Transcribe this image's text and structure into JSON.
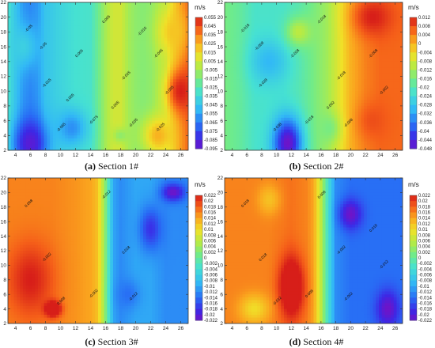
{
  "chart_data": [
    {
      "type": "heatmap",
      "caption_letter": "(a)",
      "caption_text": "Section 1#",
      "unit": "m/s",
      "x_ticks": [
        4,
        6,
        8,
        10,
        12,
        14,
        16,
        18,
        20,
        22,
        24,
        26
      ],
      "y_ticks": [
        2,
        4,
        6,
        8,
        10,
        12,
        14,
        16,
        18,
        20,
        22
      ],
      "xlim": [
        3,
        27
      ],
      "ylim": [
        2,
        22
      ],
      "colorbar_ticks": [
        0.055,
        0.045,
        0.035,
        0.025,
        0.015,
        0.005,
        -0.005,
        -0.015,
        -0.025,
        -0.035,
        -0.045,
        -0.055,
        -0.065,
        -0.075,
        -0.085,
        -0.095
      ],
      "value_range": [
        -0.095,
        0.055
      ],
      "contour_labels": [
        "-0.05",
        "-0.015",
        "0.005",
        "-0.025",
        "-0.065",
        "-0.075",
        "-0.035",
        "-0.045",
        "-0.055",
        "0.005",
        "0.005",
        "-0.05",
        "-0.015",
        "0.005",
        "-0.025"
      ],
      "base_field": [
        {
          "x": 3,
          "v": -0.03
        },
        {
          "x": 4,
          "v": -0.045
        },
        {
          "x": 5,
          "v": -0.058
        },
        {
          "x": 6,
          "v": -0.062
        },
        {
          "x": 7,
          "v": -0.058
        },
        {
          "x": 8,
          "v": -0.045
        },
        {
          "x": 10,
          "v": -0.038
        },
        {
          "x": 12,
          "v": -0.032
        },
        {
          "x": 14,
          "v": -0.03
        },
        {
          "x": 15,
          "v": -0.018
        },
        {
          "x": 16,
          "v": -0.005
        },
        {
          "x": 17,
          "v": 0.005
        },
        {
          "x": 18,
          "v": 0.005
        },
        {
          "x": 19,
          "v": -0.005
        },
        {
          "x": 20,
          "v": -0.01
        },
        {
          "x": 21,
          "v": -0.012
        },
        {
          "x": 22,
          "v": -0.01
        },
        {
          "x": 24,
          "v": 0.0
        },
        {
          "x": 25,
          "v": 0.015
        },
        {
          "x": 26,
          "v": 0.03
        },
        {
          "x": 27,
          "v": 0.04
        }
      ],
      "blobs": [
        {
          "x": 6,
          "y": 3,
          "v": -0.09,
          "rx": 2.2,
          "ry": 3.2
        },
        {
          "x": 11.5,
          "y": 5,
          "v": -0.06,
          "rx": 2,
          "ry": 2.5
        },
        {
          "x": 5,
          "y": 16,
          "v": -0.04,
          "rx": 2,
          "ry": 3
        },
        {
          "x": 26,
          "y": 10,
          "v": 0.055,
          "rx": 1.8,
          "ry": 3
        },
        {
          "x": 23,
          "y": 4,
          "v": 0.025,
          "rx": 2,
          "ry": 2.5
        },
        {
          "x": 25,
          "y": 18,
          "v": 0.02,
          "rx": 2,
          "ry": 3
        },
        {
          "x": 18,
          "y": 4,
          "v": -0.01,
          "rx": 1,
          "ry": 1
        }
      ]
    },
    {
      "type": "heatmap",
      "caption_letter": "(b)",
      "caption_text": "Section 2#",
      "unit": "m/s",
      "x_ticks": [
        4,
        6,
        8,
        10,
        12,
        14,
        16,
        18,
        20,
        22,
        24,
        26
      ],
      "y_ticks": [
        2,
        4,
        6,
        8,
        10,
        12,
        14,
        16,
        18,
        20,
        22
      ],
      "xlim": [
        3,
        27
      ],
      "ylim": [
        2,
        22
      ],
      "colorbar_ticks": [
        0.012,
        0.008,
        0.004,
        0,
        -0.004,
        -0.008,
        -0.012,
        -0.016,
        -0.02,
        -0.024,
        -0.028,
        -0.032,
        -0.036,
        -0.04,
        -0.044,
        -0.048
      ],
      "value_range": [
        -0.048,
        0.012
      ],
      "contour_labels": [
        "-0.018",
        "-0.028",
        "-0.018",
        "-0.018",
        "-0.038",
        "-0.018",
        "-0.008",
        "-0.008",
        "-0.002",
        "-0.028",
        "0.002",
        "-0.008"
      ],
      "base_field": [
        {
          "x": 3,
          "v": -0.016
        },
        {
          "x": 5,
          "v": -0.018
        },
        {
          "x": 7,
          "v": -0.022
        },
        {
          "x": 9,
          "v": -0.022
        },
        {
          "x": 11,
          "v": -0.022
        },
        {
          "x": 13,
          "v": -0.02
        },
        {
          "x": 15,
          "v": -0.016
        },
        {
          "x": 17,
          "v": -0.012
        },
        {
          "x": 18,
          "v": -0.008
        },
        {
          "x": 19,
          "v": -0.004
        },
        {
          "x": 20,
          "v": 0.0
        },
        {
          "x": 22,
          "v": 0.004
        },
        {
          "x": 24,
          "v": 0.006
        },
        {
          "x": 27,
          "v": 0.006
        }
      ],
      "blobs": [
        {
          "x": 11.5,
          "y": 3,
          "v": -0.048,
          "rx": 2,
          "ry": 3.5
        },
        {
          "x": 9,
          "y": 14,
          "v": -0.03,
          "rx": 2.5,
          "ry": 3
        },
        {
          "x": 13,
          "y": 18,
          "v": -0.01,
          "rx": 1.8,
          "ry": 2
        },
        {
          "x": 23,
          "y": 20,
          "v": 0.012,
          "rx": 2.5,
          "ry": 2.5
        },
        {
          "x": 23,
          "y": 6,
          "v": 0.008,
          "rx": 2,
          "ry": 2.5
        },
        {
          "x": 17,
          "y": 5,
          "v": -0.016,
          "rx": 1.5,
          "ry": 2
        }
      ]
    },
    {
      "type": "heatmap",
      "caption_letter": "(c)",
      "caption_text": "Section 3#",
      "unit": "m/s",
      "x_ticks": [
        4,
        6,
        8,
        10,
        12,
        14,
        16,
        18,
        20,
        22,
        24,
        26
      ],
      "y_ticks": [
        2,
        4,
        6,
        8,
        10,
        12,
        14,
        16,
        18,
        20,
        22
      ],
      "xlim": [
        3,
        27
      ],
      "ylim": [
        2,
        22
      ],
      "colorbar_ticks": [
        0.022,
        0.02,
        0.018,
        0.016,
        0.014,
        0.012,
        0.01,
        0.008,
        0.006,
        0.004,
        0.002,
        0,
        -0.002,
        -0.004,
        -0.006,
        -0.008,
        -0.01,
        -0.012,
        -0.014,
        -0.016,
        -0.018,
        -0.02,
        -0.022
      ],
      "value_range": [
        -0.022,
        0.022
      ],
      "contour_labels": [
        "0.008",
        "-0.002",
        "-0.012",
        "0.018",
        "0.008",
        "-0.002",
        "-0.012"
      ],
      "base_field": [
        {
          "x": 3,
          "v": 0.016
        },
        {
          "x": 6,
          "v": 0.016
        },
        {
          "x": 9,
          "v": 0.016
        },
        {
          "x": 12,
          "v": 0.015
        },
        {
          "x": 14,
          "v": 0.014
        },
        {
          "x": 15,
          "v": 0.012
        },
        {
          "x": 16,
          "v": 0.002
        },
        {
          "x": 17,
          "v": -0.01
        },
        {
          "x": 18,
          "v": -0.012
        },
        {
          "x": 20,
          "v": -0.01
        },
        {
          "x": 22,
          "v": -0.01
        },
        {
          "x": 24,
          "v": -0.012
        },
        {
          "x": 27,
          "v": -0.012
        }
      ],
      "blobs": [
        {
          "x": 6,
          "y": 8,
          "v": 0.022,
          "rx": 3,
          "ry": 5
        },
        {
          "x": 9,
          "y": 4,
          "v": 0.03,
          "rx": 1,
          "ry": 1
        },
        {
          "x": 22,
          "y": 15,
          "v": -0.018,
          "rx": 1.5,
          "ry": 3
        },
        {
          "x": 25,
          "y": 20,
          "v": -0.022,
          "rx": 1.5,
          "ry": 1.2
        },
        {
          "x": 19,
          "y": 6,
          "v": -0.014,
          "rx": 1.5,
          "ry": 2
        }
      ]
    },
    {
      "type": "heatmap",
      "caption_letter": "(d)",
      "caption_text": "Section 4#",
      "unit": "m/s",
      "x_ticks": [
        4,
        6,
        8,
        10,
        12,
        14,
        16,
        18,
        20,
        22,
        24,
        26
      ],
      "y_ticks": [
        2,
        4,
        6,
        8,
        10,
        12,
        14,
        16,
        18,
        20,
        22
      ],
      "xlim": [
        3,
        27
      ],
      "ylim": [
        2,
        22
      ],
      "colorbar_ticks": [
        0.022,
        0.02,
        0.018,
        0.016,
        0.014,
        0.012,
        0.01,
        0.008,
        0.006,
        0.004,
        0.002,
        0,
        -0.002,
        -0.004,
        -0.006,
        -0.008,
        -0.01,
        -0.012,
        -0.014,
        -0.016,
        -0.018,
        -0.02,
        -0.022
      ],
      "value_range": [
        -0.022,
        0.022
      ],
      "contour_labels": [
        "0.018",
        "0.018",
        "0.008",
        "-0.002",
        "-0.012",
        "0.008",
        "-0.002",
        "0.018",
        "-0.012"
      ],
      "base_field": [
        {
          "x": 3,
          "v": 0.016
        },
        {
          "x": 6,
          "v": 0.016
        },
        {
          "x": 9,
          "v": 0.016
        },
        {
          "x": 12,
          "v": 0.017
        },
        {
          "x": 14,
          "v": 0.016
        },
        {
          "x": 15,
          "v": 0.014
        },
        {
          "x": 16,
          "v": 0.006
        },
        {
          "x": 17,
          "v": -0.004
        },
        {
          "x": 18,
          "v": -0.012
        },
        {
          "x": 20,
          "v": -0.014
        },
        {
          "x": 22,
          "v": -0.014
        },
        {
          "x": 24,
          "v": -0.014
        },
        {
          "x": 27,
          "v": -0.014
        }
      ],
      "blobs": [
        {
          "x": 12,
          "y": 7,
          "v": 0.028,
          "rx": 1.6,
          "ry": 4
        },
        {
          "x": 7,
          "y": 4,
          "v": 0.01,
          "rx": 2,
          "ry": 2
        },
        {
          "x": 20,
          "y": 17,
          "v": -0.022,
          "rx": 1.5,
          "ry": 2
        },
        {
          "x": 25,
          "y": 4,
          "v": -0.022,
          "rx": 1.5,
          "ry": 2.5
        },
        {
          "x": 9,
          "y": 19,
          "v": 0.012,
          "rx": 1.5,
          "ry": 2
        }
      ]
    }
  ]
}
